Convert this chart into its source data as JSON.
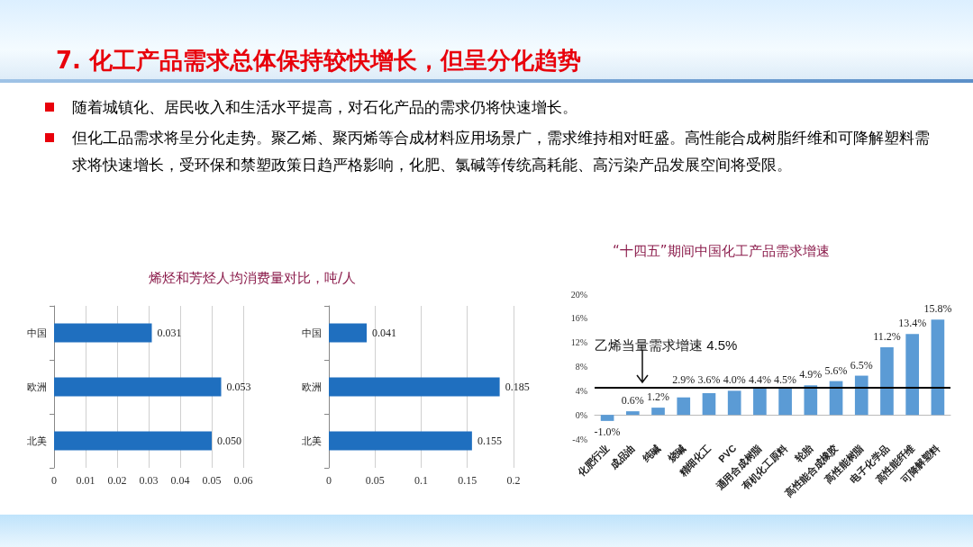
{
  "chart_data": [
    {
      "type": "other",
      "title": "7. 化工产品需求总体保持较快增长，但呈分化趋势",
      "annotations": [
        "随着城镇化、居民收入和生活水平提高，对石化产品的需求仍将快速增长。",
        "但化工品需求将呈分化走势。聚乙烯、聚丙烯等合成材料应用场景广，需求维持相对旺盛。高性能合成树脂纤维和可降解塑料需求将快速增长，受环保和禁塑政策日趋严格影响，化肥、氯碱等传统高耗能、高污染产品发展空间将受限。"
      ]
    },
    {
      "type": "bar",
      "orientation": "horizontal",
      "title": "烯烃和芳烃人均消费量对比，吨/人",
      "categories": [
        "中国",
        "欧洲",
        "北美"
      ],
      "values": [
        0.031,
        0.053,
        0.05
      ],
      "value_labels": [
        "0.031",
        "0.053",
        "0.050"
      ],
      "color": "#1f6fbf",
      "xlim": [
        0,
        0.06
      ],
      "xticks": [
        0,
        0.01,
        0.02,
        0.03,
        0.04,
        0.05,
        0.06
      ],
      "grid": "x"
    },
    {
      "type": "bar",
      "orientation": "horizontal",
      "categories": [
        "中国",
        "欧洲",
        "北美"
      ],
      "values": [
        0.041,
        0.185,
        0.155
      ],
      "value_labels": [
        "0.041",
        "0.185",
        "0.155"
      ],
      "color": "#1f6fbf",
      "xlim": [
        0,
        0.2
      ],
      "xticks": [
        0,
        0.05,
        0.1,
        0.15,
        0.2
      ],
      "grid": "x"
    },
    {
      "type": "bar",
      "title": "“十四五”期间中国化工产品需求增速",
      "categories": [
        "化肥行业",
        "成品油",
        "纯碱",
        "烧碱",
        "精细化工",
        "PVC",
        "通用合成树脂",
        "有机化工原料",
        "轮胎",
        "高性能合成橡胶",
        "高性能树脂",
        "电子化学品",
        "高性能纤维",
        "可降解塑料"
      ],
      "values": [
        -1.0,
        0.6,
        1.2,
        2.9,
        3.6,
        4.0,
        4.4,
        4.5,
        4.9,
        5.6,
        6.5,
        11.2,
        13.4,
        15.8
      ],
      "value_labels": [
        "-1.0%",
        "0.6%",
        "1.2%",
        "2.9%",
        "3.6%",
        "4.0%",
        "4.4%",
        "4.5%",
        "4.9%",
        "5.6%",
        "6.5%",
        "11.2%",
        "13.4%",
        "15.8%"
      ],
      "color": "#5b9bd5",
      "ylim": [
        -4,
        20
      ],
      "yticks": [
        {
          "value": -4,
          "label": "-4%"
        },
        {
          "value": 0,
          "label": "0%"
        },
        {
          "value": 4,
          "label": "4%"
        },
        {
          "value": 8,
          "label": "8%"
        },
        {
          "value": 12,
          "label": "12%"
        },
        {
          "value": 16,
          "label": "16%"
        },
        {
          "value": 20,
          "label": "20%"
        }
      ],
      "ref_lines": [
        {
          "axis": "y",
          "value": 4.5,
          "label": "乙烯当量需求增速 4.5%",
          "color": "#000000"
        }
      ]
    }
  ]
}
